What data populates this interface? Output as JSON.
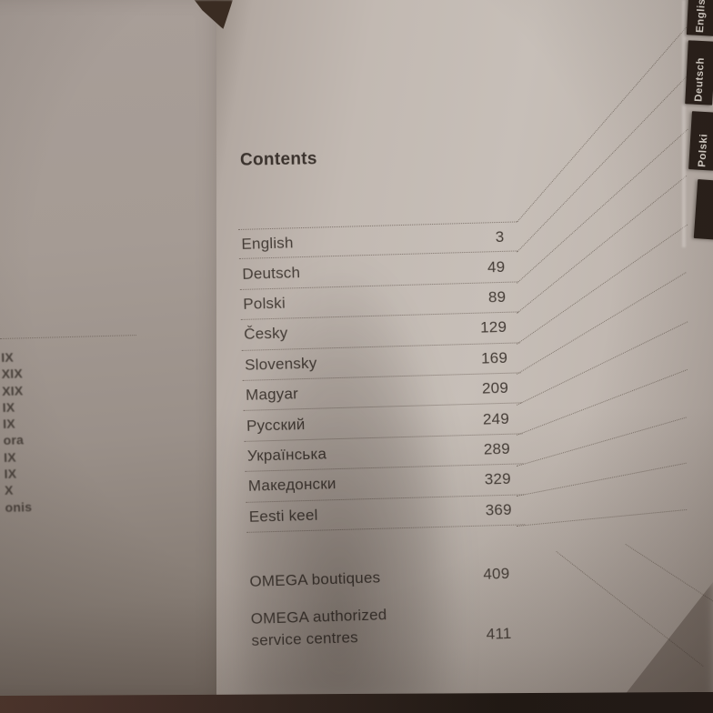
{
  "right_page": {
    "heading": "Contents",
    "toc_rows": [
      {
        "label": "English",
        "page": "3"
      },
      {
        "label": "Deutsch",
        "page": "49"
      },
      {
        "label": "Polski",
        "page": "89"
      },
      {
        "label": "Česky",
        "page": "129"
      },
      {
        "label": "Slovensky",
        "page": "169"
      },
      {
        "label": "Magyar",
        "page": "209"
      },
      {
        "label": "Русский",
        "page": "249"
      },
      {
        "label": "Українська",
        "page": "289"
      },
      {
        "label": "Македонски",
        "page": "329"
      },
      {
        "label": "Eesti keel",
        "page": "369"
      }
    ],
    "extra_rows": [
      {
        "label": "OMEGA boutiques",
        "page": "409"
      },
      {
        "label_line1": "OMEGA authorized",
        "label_line2": "service centres",
        "page": "411"
      }
    ]
  },
  "edge_tabs": [
    {
      "label": "English"
    },
    {
      "label": "Deutsch"
    },
    {
      "label": "Polski"
    },
    {
      "label": ""
    }
  ],
  "left_page": {
    "fragments": [
      "IX",
      "XIX",
      "XIX",
      "IX",
      "IX",
      "ora",
      "IX",
      "IX",
      "X",
      "onis"
    ]
  },
  "colors": {
    "page_text": "#453d37",
    "tab_background": "#2a201a",
    "tab_text": "#d9d2ca",
    "page_paper": "#c7bfb8",
    "bottom_surface": "#241b17"
  }
}
